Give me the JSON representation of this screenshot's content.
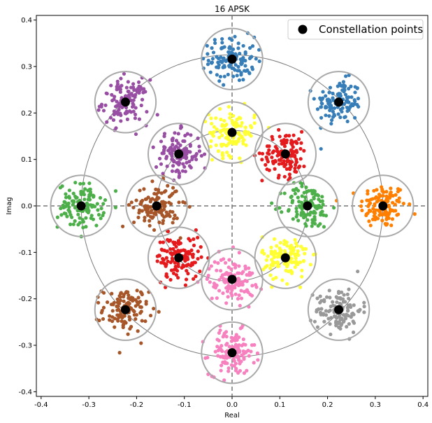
{
  "chart_data": {
    "type": "scatter",
    "title": "16 APSK",
    "xlabel": "Real",
    "ylabel": "Imag",
    "xlim": [
      -0.41,
      0.41
    ],
    "ylim": [
      -0.41,
      0.41
    ],
    "xticks": [
      "-0.4",
      "-0.3",
      "-0.2",
      "-0.1",
      "0.0",
      "0.1",
      "0.2",
      "0.3",
      "0.4"
    ],
    "yticks": [
      "0.4",
      "0.3",
      "0.2",
      "0.1",
      "0.0",
      "-0.1",
      "-0.2",
      "-0.3",
      "-0.4"
    ],
    "grid": false,
    "legend": {
      "position": "top-right",
      "entries": [
        "Constellation points"
      ]
    },
    "ring_radii": [
      0.158,
      0.316
    ],
    "decision_circle_radius": 0.064,
    "constellation_points": [
      {
        "x": 0.316,
        "y": 0.0,
        "color": "#ff7f00"
      },
      {
        "x": 0.2234,
        "y": 0.2234,
        "color": "#377eb8"
      },
      {
        "x": 0.0,
        "y": 0.316,
        "color": "#377eb8"
      },
      {
        "x": -0.2234,
        "y": 0.2234,
        "color": "#984ea3"
      },
      {
        "x": -0.316,
        "y": 0.0,
        "color": "#4daf4a"
      },
      {
        "x": -0.2234,
        "y": -0.2234,
        "color": "#a65628"
      },
      {
        "x": 0.0,
        "y": -0.316,
        "color": "#f781bf"
      },
      {
        "x": 0.2234,
        "y": -0.2234,
        "color": "#999999"
      },
      {
        "x": 0.158,
        "y": 0.0,
        "color": "#4daf4a"
      },
      {
        "x": 0.1117,
        "y": 0.1117,
        "color": "#e41a1c"
      },
      {
        "x": 0.0,
        "y": 0.158,
        "color": "#ffff33"
      },
      {
        "x": -0.1117,
        "y": 0.1117,
        "color": "#984ea3"
      },
      {
        "x": -0.158,
        "y": 0.0,
        "color": "#a65628"
      },
      {
        "x": -0.1117,
        "y": -0.1117,
        "color": "#e41a1c"
      },
      {
        "x": 0.0,
        "y": -0.158,
        "color": "#f781bf"
      },
      {
        "x": 0.1117,
        "y": -0.1117,
        "color": "#ffff33"
      }
    ],
    "noise_std": 0.024,
    "samples_per_point": 120
  }
}
